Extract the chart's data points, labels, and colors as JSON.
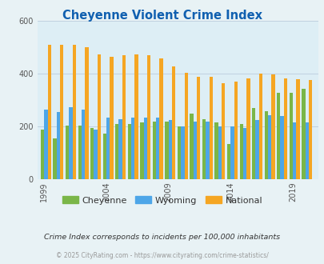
{
  "title": "Cheyenne Violent Crime Index",
  "title_color": "#1060b0",
  "subtitle": "Crime Index corresponds to incidents per 100,000 inhabitants",
  "footer": "© 2025 CityRating.com - https://www.cityrating.com/crime-statistics/",
  "years": [
    1999,
    2000,
    2001,
    2002,
    2003,
    2004,
    2005,
    2006,
    2007,
    2008,
    2009,
    2010,
    2011,
    2012,
    2013,
    2014,
    2015,
    2016,
    2017,
    2018,
    2019,
    2020
  ],
  "cheyenne": [
    190,
    155,
    205,
    205,
    195,
    175,
    210,
    210,
    215,
    220,
    220,
    200,
    250,
    230,
    215,
    135,
    210,
    270,
    260,
    330,
    330,
    345
  ],
  "wyoming": [
    265,
    255,
    275,
    265,
    190,
    235,
    230,
    235,
    235,
    235,
    225,
    200,
    220,
    220,
    200,
    200,
    195,
    225,
    245,
    240,
    215,
    215
  ],
  "national": [
    510,
    510,
    510,
    500,
    475,
    465,
    470,
    475,
    470,
    460,
    430,
    405,
    390,
    388,
    365,
    372,
    383,
    400,
    397,
    383,
    380,
    378
  ],
  "cheyenne_color": "#7ab648",
  "wyoming_color": "#4da6e8",
  "national_color": "#f5a623",
  "bg_color": "#e8f2f5",
  "plot_bg": "#ddeef5",
  "ylim": [
    0,
    600
  ],
  "yticks": [
    0,
    200,
    400,
    600
  ],
  "xtick_years": [
    1999,
    2004,
    2009,
    2014,
    2019
  ],
  "legend_labels": [
    "Cheyenne",
    "Wyoming",
    "National"
  ],
  "bar_width": 0.28,
  "grid_color": "#bbccdd"
}
